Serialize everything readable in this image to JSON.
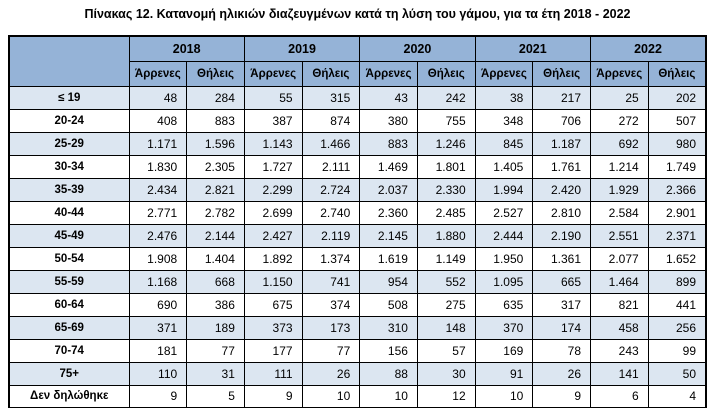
{
  "title": "Πίνακας 12. Κατανομή ηλικιών διαζευγμένων κατά τη λύση του γάμου, για τα έτη 2018 - 2022",
  "colors": {
    "header_bg": "#95B3D7",
    "stripe_bg": "#DCE6F1",
    "page_bg": "#FFFFFF",
    "border": "#000000",
    "text": "#000000"
  },
  "chart_data": {
    "type": "table",
    "title": "Πίνακας 12. Κατανομή ηλικιών διαζευγμένων κατά τη λύση του γάμου, για τα έτη 2018 - 2022",
    "years": [
      "2018",
      "2019",
      "2020",
      "2021",
      "2022"
    ],
    "sex_labels": [
      "Άρρενες",
      "Θήλεις"
    ],
    "row_labels": [
      "≤ 19",
      "20-24",
      "25-29",
      "30-34",
      "35-39",
      "40-44",
      "45-49",
      "50-54",
      "55-59",
      "60-64",
      "65-69",
      "70-74",
      "75+",
      "Δεν δηλώθηκε"
    ],
    "rows": [
      {
        "label": "≤ 19",
        "values": [
          "48",
          "284",
          "55",
          "315",
          "43",
          "242",
          "38",
          "217",
          "25",
          "202"
        ]
      },
      {
        "label": "20-24",
        "values": [
          "408",
          "883",
          "387",
          "874",
          "380",
          "755",
          "348",
          "706",
          "272",
          "507"
        ]
      },
      {
        "label": "25-29",
        "values": [
          "1.171",
          "1.596",
          "1.143",
          "1.466",
          "883",
          "1.246",
          "845",
          "1.187",
          "692",
          "980"
        ]
      },
      {
        "label": "30-34",
        "values": [
          "1.830",
          "2.305",
          "1.727",
          "2.111",
          "1.469",
          "1.801",
          "1.405",
          "1.761",
          "1.214",
          "1.749"
        ]
      },
      {
        "label": "35-39",
        "values": [
          "2.434",
          "2.821",
          "2.299",
          "2.724",
          "2.037",
          "2.330",
          "1.994",
          "2.420",
          "1.929",
          "2.366"
        ]
      },
      {
        "label": "40-44",
        "values": [
          "2.771",
          "2.782",
          "2.699",
          "2.740",
          "2.360",
          "2.485",
          "2.527",
          "2.810",
          "2.584",
          "2.901"
        ]
      },
      {
        "label": "45-49",
        "values": [
          "2.476",
          "2.144",
          "2.427",
          "2.119",
          "2.145",
          "1.880",
          "2.444",
          "2.190",
          "2.551",
          "2.371"
        ]
      },
      {
        "label": "50-54",
        "values": [
          "1.908",
          "1.404",
          "1.892",
          "1.374",
          "1.619",
          "1.149",
          "1.950",
          "1.361",
          "2.077",
          "1.652"
        ]
      },
      {
        "label": "55-59",
        "values": [
          "1.168",
          "668",
          "1.150",
          "741",
          "954",
          "552",
          "1.095",
          "665",
          "1.464",
          "899"
        ]
      },
      {
        "label": "60-64",
        "values": [
          "690",
          "386",
          "675",
          "374",
          "508",
          "275",
          "635",
          "317",
          "821",
          "441"
        ]
      },
      {
        "label": "65-69",
        "values": [
          "371",
          "189",
          "373",
          "173",
          "310",
          "148",
          "370",
          "174",
          "458",
          "256"
        ]
      },
      {
        "label": "70-74",
        "values": [
          "181",
          "77",
          "177",
          "77",
          "156",
          "57",
          "169",
          "78",
          "243",
          "99"
        ]
      },
      {
        "label": "75+",
        "values": [
          "110",
          "31",
          "111",
          "26",
          "88",
          "30",
          "91",
          "26",
          "141",
          "50"
        ]
      },
      {
        "label": "Δεν δηλώθηκε",
        "values": [
          "9",
          "5",
          "9",
          "10",
          "10",
          "12",
          "10",
          "9",
          "6",
          "4"
        ]
      }
    ]
  }
}
